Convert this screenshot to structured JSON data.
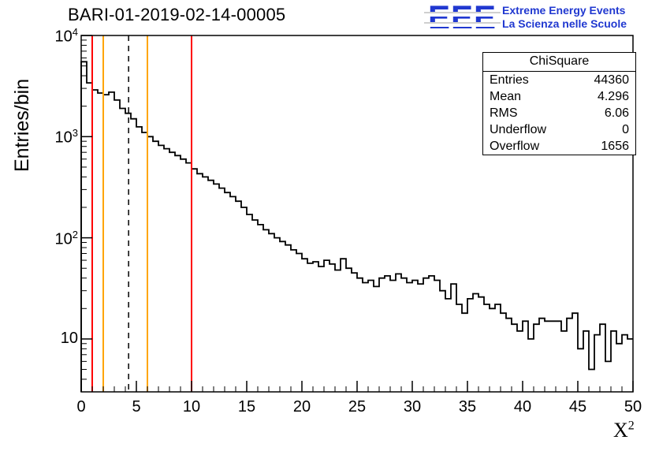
{
  "title": "BARI-01-2019-02-14-00005",
  "logo": {
    "text": "EEE",
    "line1": "Extreme Energy Events",
    "line2": "La Scienza nelle Scuole",
    "color": "#2038d0"
  },
  "stats": {
    "title": "ChiSquare",
    "rows": [
      {
        "label": "Entries",
        "value": "44360"
      },
      {
        "label": "Mean",
        "value": "4.296"
      },
      {
        "label": "RMS",
        "value": "6.06"
      },
      {
        "label": "Underflow",
        "value": "0"
      },
      {
        "label": "Overflow",
        "value": "1656"
      }
    ]
  },
  "chart_data": {
    "type": "bar",
    "subtype": "histogram-step",
    "title": "BARI-01-2019-02-14-00005",
    "xlabel": "X^2",
    "xlabel_base": "X",
    "xlabel_sup": "2",
    "ylabel": "Entries/bin",
    "xlim": [
      0,
      50
    ],
    "ylim": [
      3,
      10000
    ],
    "yscale": "log",
    "grid": false,
    "line_color": "#000000",
    "bin_start": 0,
    "bin_width": 0.5,
    "values": [
      5500,
      3400,
      2900,
      2700,
      2600,
      2750,
      2300,
      1900,
      1700,
      1500,
      1250,
      1100,
      1000,
      900,
      820,
      760,
      700,
      650,
      600,
      550,
      480,
      430,
      400,
      370,
      340,
      310,
      280,
      255,
      230,
      200,
      170,
      150,
      135,
      120,
      110,
      100,
      92,
      85,
      76,
      70,
      62,
      56,
      58,
      52,
      60,
      55,
      48,
      62,
      50,
      45,
      40,
      36,
      38,
      33,
      40,
      42,
      38,
      44,
      40,
      36,
      38,
      35,
      40,
      42,
      38,
      30,
      25,
      35,
      22,
      18,
      25,
      28,
      26,
      22,
      20,
      22,
      18,
      16,
      14,
      12,
      15,
      10,
      14,
      16,
      15,
      15,
      15,
      12,
      16,
      18,
      8,
      12,
      5,
      11,
      14,
      6,
      12,
      9,
      11,
      10
    ],
    "x_ticks": [
      0,
      5,
      10,
      15,
      20,
      25,
      30,
      35,
      40,
      45,
      50
    ],
    "y_ticks": [
      10,
      100,
      1000,
      10000
    ],
    "marker_lines": [
      {
        "x": 1,
        "color": "#ff0000",
        "style": "solid"
      },
      {
        "x": 2,
        "color": "#ffa500",
        "style": "solid"
      },
      {
        "x": 4.296,
        "color": "#000000",
        "style": "dashed"
      },
      {
        "x": 6,
        "color": "#ffa500",
        "style": "solid"
      },
      {
        "x": 10,
        "color": "#ff0000",
        "style": "solid"
      }
    ]
  }
}
